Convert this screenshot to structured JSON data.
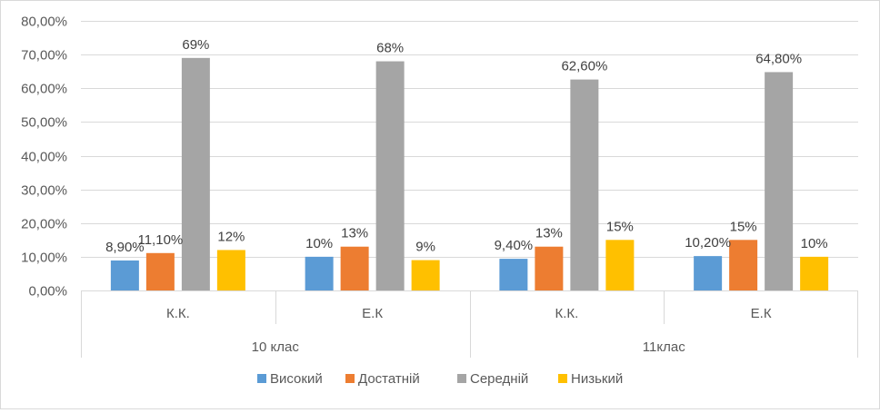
{
  "chart_data": {
    "type": "bar",
    "title": "",
    "xlabel": "",
    "ylabel": "",
    "ylim": [
      0,
      0.8
    ],
    "y_ticks": [
      0,
      0.1,
      0.2,
      0.3,
      0.4,
      0.5,
      0.6,
      0.7,
      0.8
    ],
    "y_tick_labels": [
      "0,00%",
      "10,00%",
      "20,00%",
      "30,00%",
      "40,00%",
      "50,00%",
      "60,00%",
      "70,00%",
      "80,00%"
    ],
    "grid": true,
    "legend_position": "bottom",
    "groups": [
      {
        "label": "10 клас",
        "categories": [
          "К.К.",
          "Е.К"
        ]
      },
      {
        "label": "11клас",
        "categories": [
          "К.К.",
          "Е.К"
        ]
      }
    ],
    "categories": [
      "К.К.",
      "Е.К",
      "К.К.",
      "Е.К"
    ],
    "series": [
      {
        "name": "Високий",
        "color": "#5B9BD5",
        "values": [
          0.089,
          0.1,
          0.094,
          0.102
        ],
        "labels": [
          "8,90%",
          "10%",
          "9,40%",
          "10,20%"
        ]
      },
      {
        "name": "Достатній",
        "color": "#ED7D31",
        "values": [
          0.111,
          0.13,
          0.13,
          0.15
        ],
        "labels": [
          "11,10%",
          "13%",
          "13%",
          "15%"
        ]
      },
      {
        "name": "Середній",
        "color": "#A5A5A5",
        "values": [
          0.69,
          0.68,
          0.626,
          0.648
        ],
        "labels": [
          "69%",
          "68%",
          "62,60%",
          "64,80%"
        ]
      },
      {
        "name": "Низький",
        "color": "#FFC000",
        "values": [
          0.12,
          0.09,
          0.15,
          0.1
        ],
        "labels": [
          "12%",
          "9%",
          "15%",
          "10%"
        ]
      }
    ]
  }
}
